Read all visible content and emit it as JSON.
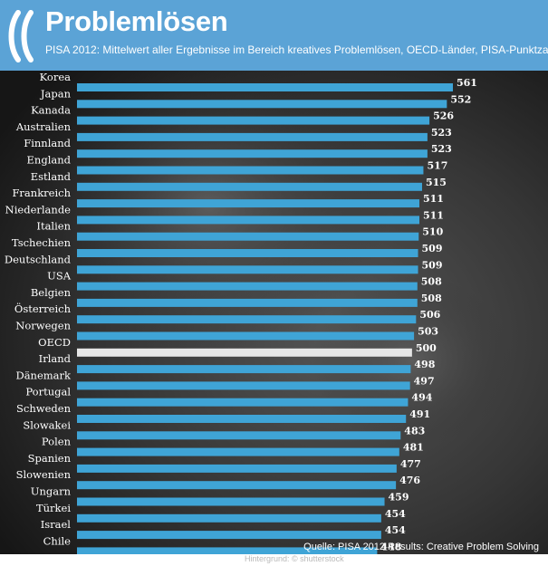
{
  "header": {
    "title": "Problemlösen",
    "subtitle": "PISA 2012: Mittelwert aller Ergebnisse im Bereich kreatives Problemlösen, OECD-Länder, PISA-Punktzahl"
  },
  "footer": {
    "source": "Quelle: PISA 2012 Results: Creative Problem Solving",
    "credit": "Hintergrund: © shutterstock"
  },
  "colors": {
    "header_bg": "#5ba3d6",
    "bar": "#3fa4d6",
    "highlight_bar": "#e6e6e6",
    "background": "#2e2e2e"
  },
  "chart_data": {
    "type": "bar",
    "orientation": "horizontal",
    "categories": [
      "Korea",
      "Japan",
      "Kanada",
      "Australien",
      "Finnland",
      "England",
      "Estland",
      "Frankreich",
      "Niederlande",
      "Italien",
      "Tschechien",
      "Deutschland",
      "USA",
      "Belgien",
      "Österreich",
      "Norwegen",
      "OECD",
      "Irland",
      "Dänemark",
      "Portugal",
      "Schweden",
      "Slowakei",
      "Polen",
      "Spanien",
      "Slowenien",
      "Ungarn",
      "Türkei",
      "Israel",
      "Chile"
    ],
    "values": [
      561,
      552,
      526,
      523,
      523,
      517,
      515,
      511,
      511,
      510,
      509,
      509,
      508,
      508,
      506,
      503,
      500,
      498,
      497,
      494,
      491,
      483,
      481,
      477,
      476,
      459,
      454,
      454,
      448
    ],
    "highlight": "OECD",
    "xlim": [
      0,
      561
    ],
    "grid": false,
    "legend": "none"
  }
}
